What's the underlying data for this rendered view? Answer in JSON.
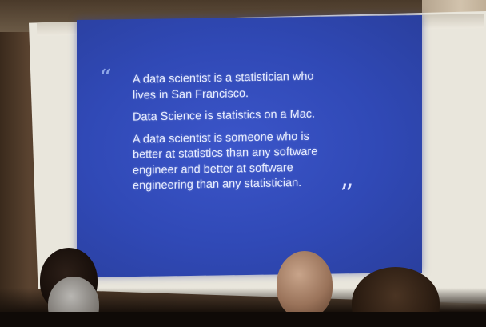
{
  "slide": {
    "quote_open_glyph": "“",
    "quote_close_glyph": "”",
    "lines": [
      "A data scientist is a statistician who\nlives in San Francisco.",
      "Data Science is statistics on a Mac.",
      "A data scientist is someone who is\nbetter at statistics than any software\nengineer and better at software\nengineering than any statistician."
    ],
    "background_color": "#3049b6",
    "text_color": "#e6ecff"
  }
}
